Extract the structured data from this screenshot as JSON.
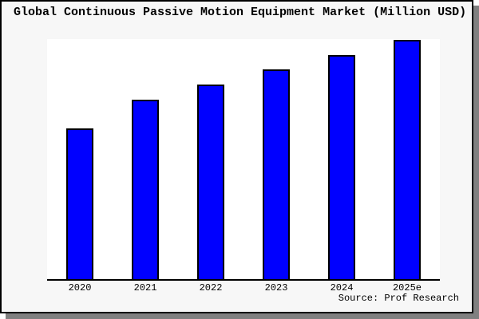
{
  "window": {
    "title": "Global Continuous Passive Motion Equipment Market (Million USD)",
    "source_note": "Source: Prof Research"
  },
  "colors": {
    "bar_fill": "#0000ff",
    "bar_border": "#000000",
    "chart_background": "#f7f7f7",
    "plot_background": "#ffffff",
    "axis_line": "#000000",
    "frame_border": "#000000",
    "shadow": "#808080",
    "text": "#000000"
  },
  "chart_data": {
    "type": "bar",
    "title": "Global Continuous Passive Motion Equipment Market (Million USD)",
    "categories": [
      "2020",
      "2021",
      "2022",
      "2023",
      "2024",
      "2025e"
    ],
    "values": [
      63.0,
      75.0,
      81.3,
      87.7,
      93.7,
      100.0
    ],
    "units": "relative height, 2025e = 100 (no y-axis scale is shown in the image)",
    "xlabel": "",
    "ylabel": "",
    "ylim": [
      0,
      100.3
    ],
    "grid": false,
    "legend": false,
    "source": "Source: Prof Research"
  }
}
